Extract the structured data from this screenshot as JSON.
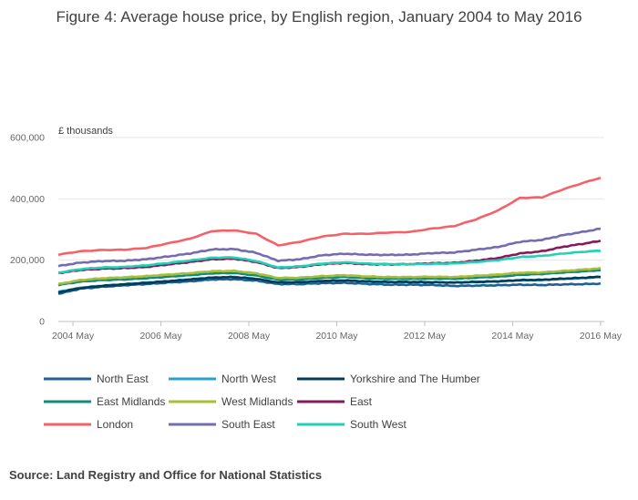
{
  "chart_data": {
    "type": "line",
    "title": "Figure 4: Average house price, by English region, January 2004 to May 2016",
    "ylabel": "£ thousands",
    "xlabel": "",
    "xlim": [
      2004.0,
      2016.417
    ],
    "ylim": [
      0,
      600000
    ],
    "yticks": [
      {
        "value": 0,
        "label": "0"
      },
      {
        "value": 200000,
        "label": "200,000"
      },
      {
        "value": 400000,
        "label": "400,000"
      },
      {
        "value": 600000,
        "label": "600,000"
      }
    ],
    "xticks": [
      {
        "value": 2004.333,
        "label": "2004 May"
      },
      {
        "value": 2006.333,
        "label": "2006 May"
      },
      {
        "value": 2008.333,
        "label": "2008 May"
      },
      {
        "value": 2010.333,
        "label": "2010 May"
      },
      {
        "value": 2012.333,
        "label": "2012 May"
      },
      {
        "value": 2014.333,
        "label": "2014 May"
      },
      {
        "value": 2016.333,
        "label": "2016 May"
      }
    ],
    "grid": "horizontal",
    "legend_position": "bottom",
    "source": "Source: Land Registry and Office for National Statistics",
    "series": [
      {
        "name": "North East",
        "color": "#206095",
        "points": [
          [
            2004.0,
            90000
          ],
          [
            2004.5,
            107000
          ],
          [
            2005.0,
            113000
          ],
          [
            2005.5,
            118000
          ],
          [
            2006.0,
            122000
          ],
          [
            2006.5,
            127000
          ],
          [
            2007.0,
            131000
          ],
          [
            2007.5,
            137000
          ],
          [
            2008.0,
            138000
          ],
          [
            2008.5,
            133000
          ],
          [
            2009.0,
            122000
          ],
          [
            2009.5,
            122000
          ],
          [
            2010.0,
            125000
          ],
          [
            2010.5,
            126000
          ],
          [
            2011.0,
            123000
          ],
          [
            2011.5,
            120000
          ],
          [
            2012.0,
            120000
          ],
          [
            2012.5,
            119000
          ],
          [
            2013.0,
            116000
          ],
          [
            2013.5,
            117000
          ],
          [
            2014.0,
            118000
          ],
          [
            2014.5,
            120000
          ],
          [
            2015.0,
            119000
          ],
          [
            2015.5,
            121000
          ],
          [
            2016.0,
            122000
          ],
          [
            2016.417,
            124000
          ]
        ]
      },
      {
        "name": "North West",
        "color": "#27A0CC",
        "points": [
          [
            2004.0,
            97000
          ],
          [
            2004.5,
            110000
          ],
          [
            2005.0,
            117000
          ],
          [
            2005.5,
            122000
          ],
          [
            2006.0,
            127000
          ],
          [
            2006.5,
            132000
          ],
          [
            2007.0,
            138000
          ],
          [
            2007.5,
            143000
          ],
          [
            2008.0,
            145000
          ],
          [
            2008.5,
            139000
          ],
          [
            2009.0,
            127000
          ],
          [
            2009.5,
            128000
          ],
          [
            2010.0,
            132000
          ],
          [
            2010.5,
            134000
          ],
          [
            2011.0,
            130000
          ],
          [
            2011.5,
            128000
          ],
          [
            2012.0,
            128000
          ],
          [
            2012.5,
            128000
          ],
          [
            2013.0,
            127000
          ],
          [
            2013.5,
            129000
          ],
          [
            2014.0,
            131000
          ],
          [
            2014.5,
            134000
          ],
          [
            2015.0,
            135000
          ],
          [
            2015.5,
            139000
          ],
          [
            2016.0,
            142000
          ],
          [
            2016.417,
            146000
          ]
        ]
      },
      {
        "name": "Yorkshire and The Humber",
        "color": "#003C57",
        "points": [
          [
            2004.0,
            95000
          ],
          [
            2004.5,
            109000
          ],
          [
            2005.0,
            116000
          ],
          [
            2005.5,
            121000
          ],
          [
            2006.0,
            126000
          ],
          [
            2006.5,
            131000
          ],
          [
            2007.0,
            137000
          ],
          [
            2007.5,
            143000
          ],
          [
            2008.0,
            145000
          ],
          [
            2008.5,
            139000
          ],
          [
            2009.0,
            127000
          ],
          [
            2009.5,
            128000
          ],
          [
            2010.0,
            132000
          ],
          [
            2010.5,
            134000
          ],
          [
            2011.0,
            131000
          ],
          [
            2011.5,
            129000
          ],
          [
            2012.0,
            129000
          ],
          [
            2012.5,
            128000
          ],
          [
            2013.0,
            127000
          ],
          [
            2013.5,
            129000
          ],
          [
            2014.0,
            131000
          ],
          [
            2014.5,
            135000
          ],
          [
            2015.0,
            136000
          ],
          [
            2015.5,
            140000
          ],
          [
            2016.0,
            143000
          ],
          [
            2016.417,
            147000
          ]
        ]
      },
      {
        "name": "East Midlands",
        "color": "#118C7B",
        "points": [
          [
            2004.0,
            119000
          ],
          [
            2004.5,
            130000
          ],
          [
            2005.0,
            135000
          ],
          [
            2005.5,
            137000
          ],
          [
            2006.0,
            141000
          ],
          [
            2006.5,
            146000
          ],
          [
            2007.0,
            151000
          ],
          [
            2007.5,
            157000
          ],
          [
            2008.0,
            158000
          ],
          [
            2008.5,
            150000
          ],
          [
            2009.0,
            136000
          ],
          [
            2009.5,
            137000
          ],
          [
            2010.0,
            142000
          ],
          [
            2010.5,
            145000
          ],
          [
            2011.0,
            141000
          ],
          [
            2011.5,
            139000
          ],
          [
            2012.0,
            139000
          ],
          [
            2012.5,
            140000
          ],
          [
            2013.0,
            139000
          ],
          [
            2013.5,
            143000
          ],
          [
            2014.0,
            146000
          ],
          [
            2014.5,
            152000
          ],
          [
            2015.0,
            155000
          ],
          [
            2015.5,
            160000
          ],
          [
            2016.0,
            164000
          ],
          [
            2016.417,
            168000
          ]
        ]
      },
      {
        "name": "West Midlands",
        "color": "#A8BD3A",
        "points": [
          [
            2004.0,
            122000
          ],
          [
            2004.5,
            135000
          ],
          [
            2005.0,
            141000
          ],
          [
            2005.5,
            144000
          ],
          [
            2006.0,
            148000
          ],
          [
            2006.5,
            153000
          ],
          [
            2007.0,
            158000
          ],
          [
            2007.5,
            164000
          ],
          [
            2008.0,
            165000
          ],
          [
            2008.5,
            157000
          ],
          [
            2009.0,
            142000
          ],
          [
            2009.5,
            143000
          ],
          [
            2010.0,
            148000
          ],
          [
            2010.5,
            151000
          ],
          [
            2011.0,
            147000
          ],
          [
            2011.5,
            145000
          ],
          [
            2012.0,
            145000
          ],
          [
            2012.5,
            146000
          ],
          [
            2013.0,
            145000
          ],
          [
            2013.5,
            149000
          ],
          [
            2014.0,
            153000
          ],
          [
            2014.5,
            159000
          ],
          [
            2015.0,
            160000
          ],
          [
            2015.5,
            165000
          ],
          [
            2016.0,
            170000
          ],
          [
            2016.417,
            174000
          ]
        ]
      },
      {
        "name": "East",
        "color": "#871A5B",
        "points": [
          [
            2004.0,
            158000
          ],
          [
            2004.5,
            168000
          ],
          [
            2005.0,
            172000
          ],
          [
            2005.5,
            174000
          ],
          [
            2006.0,
            178000
          ],
          [
            2006.5,
            186000
          ],
          [
            2007.0,
            194000
          ],
          [
            2007.5,
            203000
          ],
          [
            2008.0,
            205000
          ],
          [
            2008.5,
            194000
          ],
          [
            2009.0,
            174000
          ],
          [
            2009.5,
            178000
          ],
          [
            2010.0,
            187000
          ],
          [
            2010.5,
            191000
          ],
          [
            2011.0,
            187000
          ],
          [
            2011.5,
            186000
          ],
          [
            2012.0,
            187000
          ],
          [
            2012.5,
            190000
          ],
          [
            2013.0,
            191000
          ],
          [
            2013.5,
            198000
          ],
          [
            2014.0,
            207000
          ],
          [
            2014.5,
            222000
          ],
          [
            2015.0,
            229000
          ],
          [
            2015.5,
            244000
          ],
          [
            2016.0,
            255000
          ],
          [
            2016.417,
            265000
          ]
        ]
      },
      {
        "name": "London",
        "color": "#F66068",
        "points": [
          [
            2004.0,
            218000
          ],
          [
            2004.5,
            229000
          ],
          [
            2005.0,
            233000
          ],
          [
            2005.5,
            234000
          ],
          [
            2006.0,
            240000
          ],
          [
            2006.5,
            255000
          ],
          [
            2007.0,
            270000
          ],
          [
            2007.5,
            295000
          ],
          [
            2008.0,
            297000
          ],
          [
            2008.5,
            286000
          ],
          [
            2009.0,
            248000
          ],
          [
            2009.5,
            260000
          ],
          [
            2010.0,
            277000
          ],
          [
            2010.5,
            286000
          ],
          [
            2011.0,
            286000
          ],
          [
            2011.5,
            290000
          ],
          [
            2012.0,
            292000
          ],
          [
            2012.5,
            303000
          ],
          [
            2013.0,
            311000
          ],
          [
            2013.5,
            333000
          ],
          [
            2014.0,
            362000
          ],
          [
            2014.5,
            403000
          ],
          [
            2015.0,
            405000
          ],
          [
            2015.5,
            432000
          ],
          [
            2016.0,
            455000
          ],
          [
            2016.417,
            472000
          ]
        ]
      },
      {
        "name": "South East",
        "color": "#746CB1",
        "points": [
          [
            2004.0,
            181000
          ],
          [
            2004.5,
            192000
          ],
          [
            2005.0,
            197000
          ],
          [
            2005.5,
            198000
          ],
          [
            2006.0,
            203000
          ],
          [
            2006.5,
            212000
          ],
          [
            2007.0,
            222000
          ],
          [
            2007.5,
            235000
          ],
          [
            2008.0,
            236000
          ],
          [
            2008.5,
            224000
          ],
          [
            2009.0,
            198000
          ],
          [
            2009.5,
            203000
          ],
          [
            2010.0,
            216000
          ],
          [
            2010.5,
            221000
          ],
          [
            2011.0,
            218000
          ],
          [
            2011.5,
            217000
          ],
          [
            2012.0,
            218000
          ],
          [
            2012.5,
            223000
          ],
          [
            2013.0,
            225000
          ],
          [
            2013.5,
            234000
          ],
          [
            2014.0,
            243000
          ],
          [
            2014.5,
            260000
          ],
          [
            2015.0,
            266000
          ],
          [
            2015.5,
            282000
          ],
          [
            2016.0,
            294000
          ],
          [
            2016.417,
            305000
          ]
        ]
      },
      {
        "name": "South West",
        "color": "#22D0B6",
        "points": [
          [
            2004.0,
            159000
          ],
          [
            2004.5,
            171000
          ],
          [
            2005.0,
            176000
          ],
          [
            2005.5,
            178000
          ],
          [
            2006.0,
            183000
          ],
          [
            2006.5,
            191000
          ],
          [
            2007.0,
            199000
          ],
          [
            2007.5,
            208000
          ],
          [
            2008.0,
            209000
          ],
          [
            2008.5,
            197000
          ],
          [
            2009.0,
            176000
          ],
          [
            2009.5,
            180000
          ],
          [
            2010.0,
            189000
          ],
          [
            2010.5,
            193000
          ],
          [
            2011.0,
            189000
          ],
          [
            2011.5,
            187000
          ],
          [
            2012.0,
            187000
          ],
          [
            2012.5,
            188000
          ],
          [
            2013.0,
            189000
          ],
          [
            2013.5,
            194000
          ],
          [
            2014.0,
            200000
          ],
          [
            2014.5,
            210000
          ],
          [
            2015.0,
            214000
          ],
          [
            2015.5,
            222000
          ],
          [
            2016.0,
            228000
          ],
          [
            2016.417,
            232000
          ]
        ]
      }
    ]
  }
}
